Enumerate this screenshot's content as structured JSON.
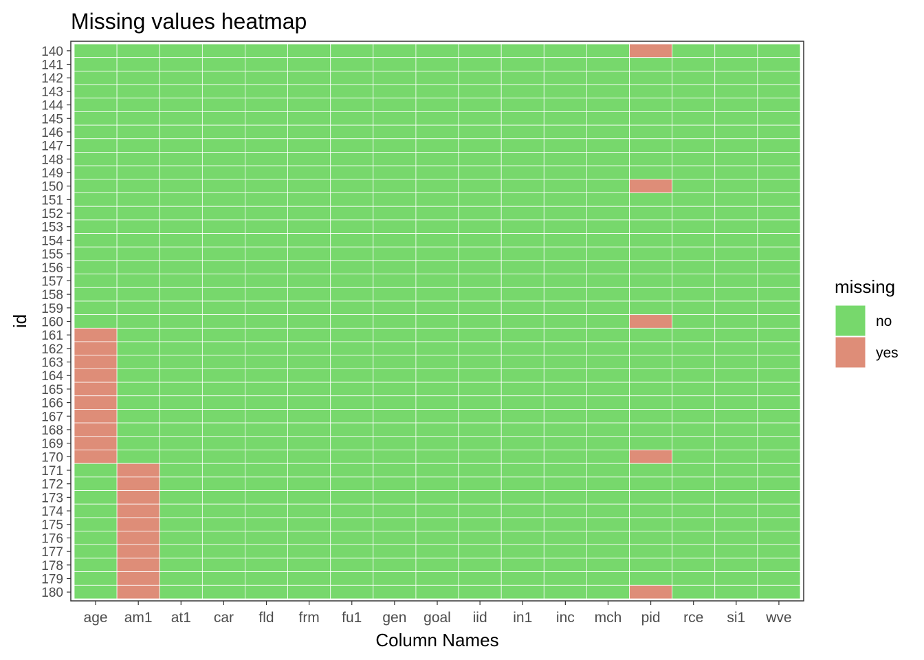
{
  "chart_data": {
    "type": "heatmap",
    "title": "Missing values heatmap",
    "xlabel": "Column Names",
    "ylabel": "id",
    "columns": [
      "age",
      "am1",
      "at1",
      "car",
      "fld",
      "frm",
      "fu1",
      "gen",
      "goal",
      "iid",
      "in1",
      "inc",
      "mch",
      "pid",
      "rce",
      "si1",
      "wve"
    ],
    "rows": [
      140,
      141,
      142,
      143,
      144,
      145,
      146,
      147,
      148,
      149,
      150,
      151,
      152,
      153,
      154,
      155,
      156,
      157,
      158,
      159,
      160,
      161,
      162,
      163,
      164,
      165,
      166,
      167,
      168,
      169,
      170,
      171,
      172,
      173,
      174,
      175,
      176,
      177,
      178,
      179,
      180
    ],
    "missing": {
      "age": [
        161,
        162,
        163,
        164,
        165,
        166,
        167,
        168,
        169,
        170
      ],
      "am1": [
        171,
        172,
        173,
        174,
        175,
        176,
        177,
        178,
        179,
        180
      ],
      "pid": [
        140,
        150,
        160,
        170,
        180
      ]
    },
    "legend": {
      "title": "missing",
      "position": "right",
      "entries": [
        {
          "label": "no",
          "color": "#77D86C"
        },
        {
          "label": "yes",
          "color": "#DE8D78"
        }
      ]
    },
    "grid": true
  }
}
